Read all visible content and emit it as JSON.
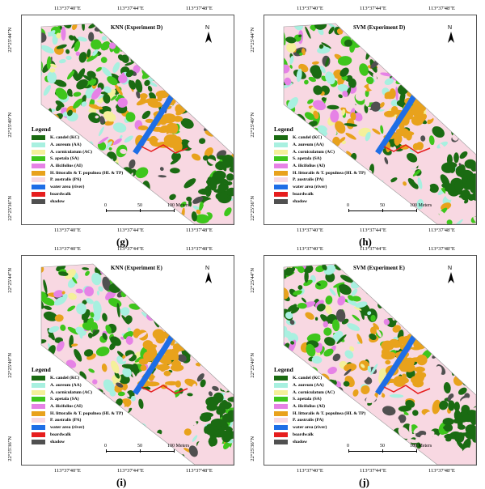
{
  "coordinates": {
    "lon_left": "113°37'40\"E",
    "lon_mid": "113°37'44\"E",
    "lon_right": "113°37'48\"E",
    "lat_top": "22°25'44\"N",
    "lat_mid": "22°25'40\"N",
    "lat_bottom": "22°25'36\"N"
  },
  "north_label": "N",
  "legend": {
    "title": "Legend",
    "items": [
      {
        "label": "K. candel (KC)",
        "color": "#1a6b12"
      },
      {
        "label": "A. aureum (AA)",
        "color": "#a8f0e0"
      },
      {
        "label": "A. corniculatum (AC)",
        "color": "#f4f09a"
      },
      {
        "label": "S. apetala (SA)",
        "color": "#3ec61c"
      },
      {
        "label": "A. ilicifolius (AI)",
        "color": "#e682e6"
      },
      {
        "label": "H. littoralis & T. populnea (HL & TP)",
        "color": "#e8a21c"
      },
      {
        "label": "P. australis (PA)",
        "color": "#f8d8e2"
      },
      {
        "label": "water area (river)",
        "color": "#1e6ee6"
      },
      {
        "label": "boardwalk",
        "color": "#e61e1e"
      },
      {
        "label": "shadow",
        "color": "#505050"
      }
    ]
  },
  "scalebar": {
    "label_0": "0",
    "label_50": "50",
    "label_100": "100 Meters"
  },
  "panels": [
    {
      "title": "KNN (Experiment D)",
      "label": "(g)"
    },
    {
      "title": "SVM (Experiment D)",
      "label": "(h)"
    },
    {
      "title": "KNN (Experiment E)",
      "label": "(i)"
    },
    {
      "title": "SVM (Experiment E)",
      "label": "(j)"
    }
  ]
}
